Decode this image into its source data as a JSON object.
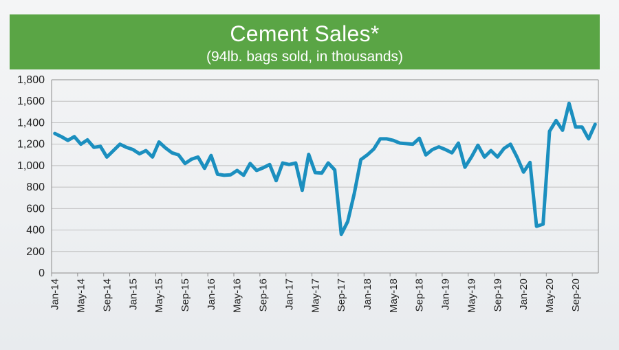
{
  "header": {
    "title": "Cement Sales*",
    "subtitle": "(94lb. bags sold, in thousands)"
  },
  "colors": {
    "banner": "#5aa545",
    "line": "#1b8fbf"
  },
  "chart_data": {
    "type": "line",
    "title": "Cement Sales*",
    "subtitle": "(94lb. bags sold, in thousands)",
    "xlabel": "",
    "ylabel": "",
    "ylim": [
      0,
      1800
    ],
    "grid": true,
    "y_ticks": [
      0,
      200,
      400,
      600,
      800,
      1000,
      1200,
      1400,
      1600,
      1800
    ],
    "y_tick_labels": [
      "0",
      "200",
      "400",
      "600",
      "800",
      "1,000",
      "1,200",
      "1,400",
      "1,600",
      "1,800"
    ],
    "x_tick_labels": [
      "Jan-14",
      "May-14",
      "Sep-14",
      "Jan-15",
      "May-15",
      "Sep-15",
      "Jan-16",
      "May-16",
      "Sep-16",
      "Jan-17",
      "May-17",
      "Sep-17",
      "Jan-18",
      "May-18",
      "Sep-18",
      "Jan-19",
      "May-19",
      "Sep-19",
      "Jan-20",
      "May-20",
      "Sep-20"
    ],
    "start_month": "Jan-14",
    "series": [
      {
        "values": [
          1300,
          1270,
          1235,
          1270,
          1200,
          1240,
          1170,
          1180,
          1080,
          1140,
          1200,
          1170,
          1150,
          1110,
          1140,
          1080,
          1220,
          1165,
          1120,
          1100,
          1020,
          1060,
          1080,
          975,
          1095,
          920,
          910,
          915,
          955,
          910,
          1020,
          955,
          980,
          1010,
          860,
          1025,
          1010,
          1025,
          770,
          1105,
          935,
          930,
          1025,
          960,
          360,
          480,
          740,
          1055,
          1100,
          1155,
          1250,
          1250,
          1235,
          1210,
          1205,
          1200,
          1255,
          1100,
          1150,
          1175,
          1150,
          1120,
          1210,
          985,
          1080,
          1190,
          1080,
          1140,
          1080,
          1160,
          1200,
          1080,
          940,
          1030,
          435,
          455,
          1320,
          1420,
          1330,
          1580,
          1360,
          1360,
          1250,
          1385
        ]
      }
    ]
  }
}
